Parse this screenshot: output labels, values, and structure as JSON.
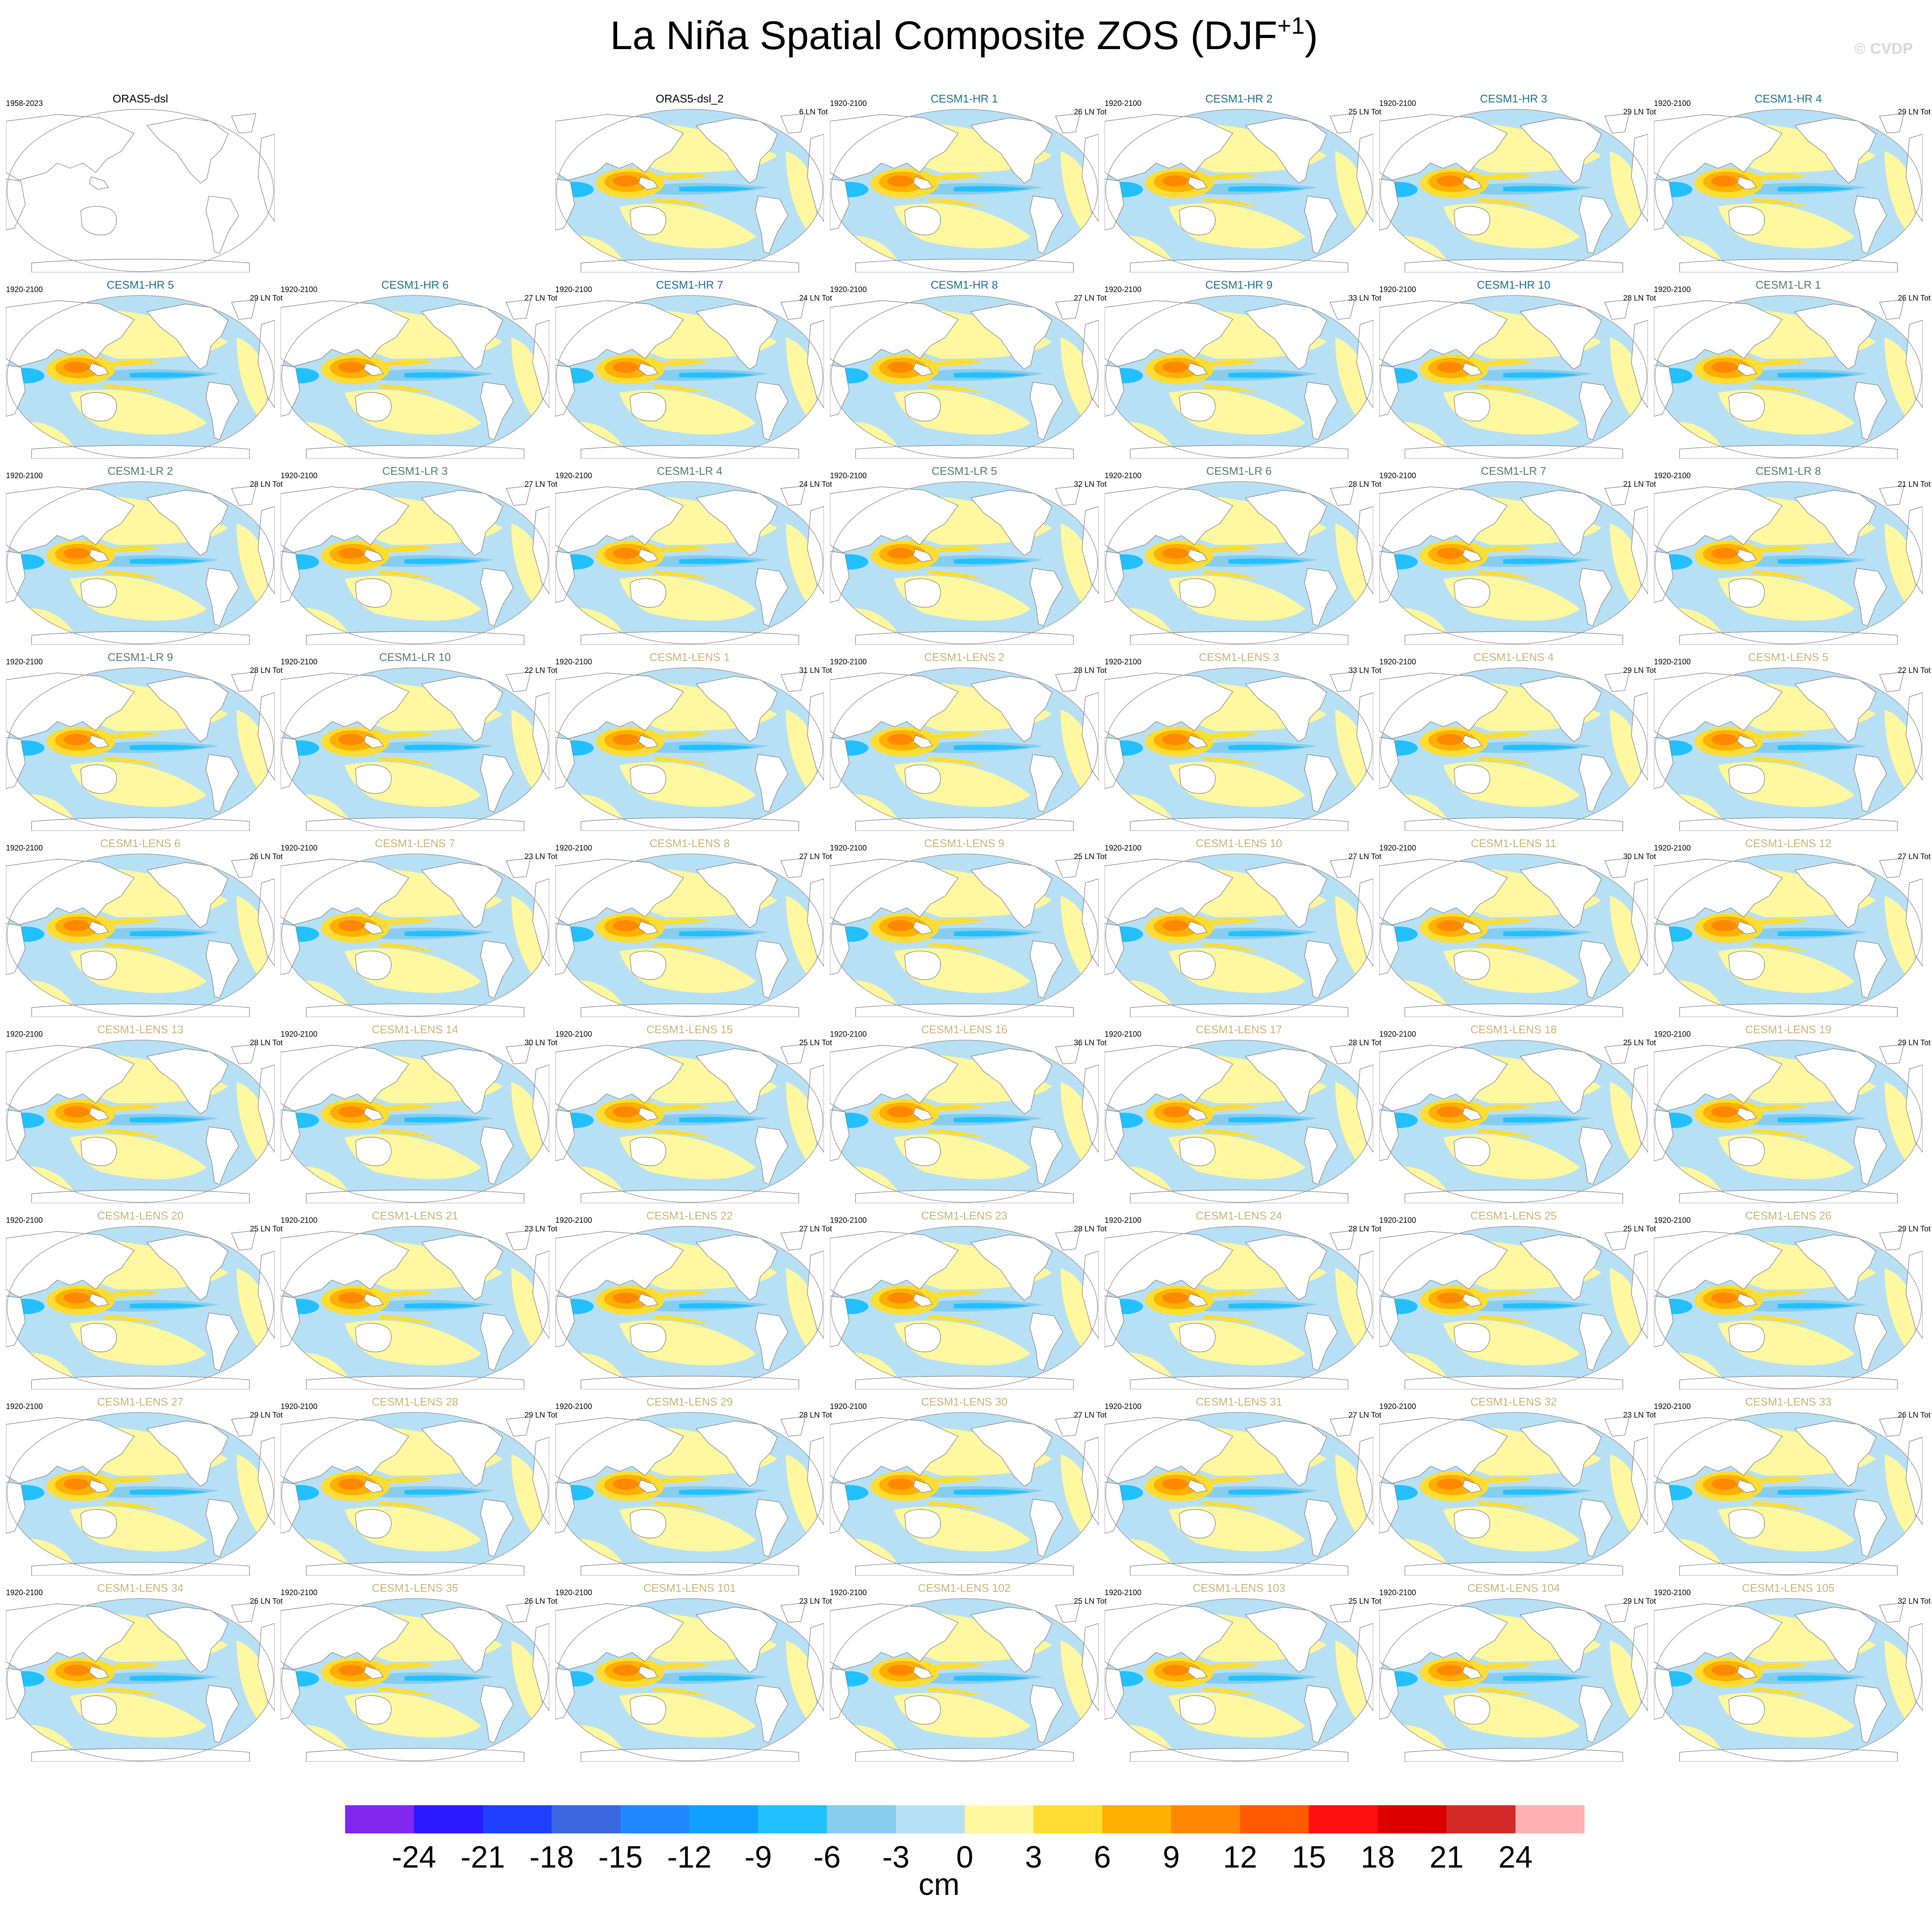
{
  "title_main": "La Niña Spatial Composite ZOS (DJF",
  "title_sup": "+1",
  "title_end": ")",
  "credit": "© CVDP",
  "groups": [
    {
      "color": "#000000",
      "panels": [
        {
          "title": "ORAS5-dsl",
          "period": "1958-2023"
        },
        {
          "title": "ORAS5-dsl_2",
          "count": "6 LN Tot"
        }
      ]
    },
    {
      "color": "#1f6f8b",
      "panels": [
        {
          "title": "CESM1-HR 1",
          "period": "1920-2100",
          "count": "26 LN Tot"
        },
        {
          "title": "CESM1-HR 2",
          "period": "1920-2100",
          "count": "25 LN Tot"
        },
        {
          "title": "CESM1-HR 3",
          "period": "1920-2100",
          "count": "29 LN Tot"
        },
        {
          "title": "CESM1-HR 4",
          "period": "1920-2100",
          "count": "29 LN Tot"
        },
        {
          "title": "CESM1-HR 5",
          "period": "1920-2100",
          "count": "29 LN Tot"
        },
        {
          "title": "CESM1-HR 6",
          "period": "1920-2100",
          "count": "27 LN Tot"
        },
        {
          "title": "CESM1-HR 7",
          "period": "1920-2100",
          "count": "24 LN Tot"
        },
        {
          "title": "CESM1-HR 8",
          "period": "1920-2100",
          "count": "27 LN Tot"
        },
        {
          "title": "CESM1-HR 9",
          "period": "1920-2100",
          "count": "33 LN Tot"
        },
        {
          "title": "CESM1-HR 10",
          "period": "1920-2100",
          "count": "28 LN Tot"
        }
      ]
    },
    {
      "color": "#567a6e",
      "panels": [
        {
          "title": "CESM1-LR 1",
          "period": "1920-2100",
          "count": "26 LN Tot"
        },
        {
          "title": "CESM1-LR 2",
          "period": "1920-2100",
          "count": "28 LN Tot"
        },
        {
          "title": "CESM1-LR 3",
          "period": "1920-2100",
          "count": "27 LN Tot"
        },
        {
          "title": "CESM1-LR 4",
          "period": "1920-2100",
          "count": "24 LN Tot"
        },
        {
          "title": "CESM1-LR 5",
          "period": "1920-2100",
          "count": "32 LN Tot"
        },
        {
          "title": "CESM1-LR 6",
          "period": "1920-2100",
          "count": "28 LN Tot"
        },
        {
          "title": "CESM1-LR 7",
          "period": "1920-2100",
          "count": "21 LN Tot"
        },
        {
          "title": "CESM1-LR 8",
          "period": "1920-2100",
          "count": "21 LN Tot"
        },
        {
          "title": "CESM1-LR 9",
          "period": "1920-2100",
          "count": "28 LN Tot"
        },
        {
          "title": "CESM1-LR 10",
          "period": "1920-2100",
          "count": "22 LN Tot"
        }
      ]
    },
    {
      "color": "#c9b476",
      "panels": [
        {
          "title": "CESM1-LENS 1",
          "period": "1920-2100",
          "count": "31 LN Tot"
        },
        {
          "title": "CESM1-LENS 2",
          "period": "1920-2100",
          "count": "28 LN Tot"
        },
        {
          "title": "CESM1-LENS 3",
          "period": "1920-2100",
          "count": "33 LN Tot"
        },
        {
          "title": "CESM1-LENS 4",
          "period": "1920-2100",
          "count": "29 LN Tot"
        },
        {
          "title": "CESM1-LENS 5",
          "period": "1920-2100",
          "count": "22 LN Tot"
        },
        {
          "title": "CESM1-LENS 6",
          "period": "1920-2100",
          "count": "26 LN Tot"
        },
        {
          "title": "CESM1-LENS 7",
          "period": "1920-2100",
          "count": "23 LN Tot"
        },
        {
          "title": "CESM1-LENS 8",
          "period": "1920-2100",
          "count": "27 LN Tot"
        },
        {
          "title": "CESM1-LENS 9",
          "period": "1920-2100",
          "count": "25 LN Tot"
        },
        {
          "title": "CESM1-LENS 10",
          "period": "1920-2100",
          "count": "27 LN Tot"
        },
        {
          "title": "CESM1-LENS 11",
          "period": "1920-2100",
          "count": "30 LN Tot"
        },
        {
          "title": "CESM1-LENS 12",
          "period": "1920-2100",
          "count": "27 LN Tot"
        },
        {
          "title": "CESM1-LENS 13",
          "period": "1920-2100",
          "count": "28 LN Tot"
        },
        {
          "title": "CESM1-LENS 14",
          "period": "1920-2100",
          "count": "30 LN Tot"
        },
        {
          "title": "CESM1-LENS 15",
          "period": "1920-2100",
          "count": "25 LN Tot"
        },
        {
          "title": "CESM1-LENS 16",
          "period": "1920-2100",
          "count": "36 LN Tot"
        },
        {
          "title": "CESM1-LENS 17",
          "period": "1920-2100",
          "count": "28 LN Tot"
        },
        {
          "title": "CESM1-LENS 18",
          "period": "1920-2100",
          "count": "25 LN Tot"
        },
        {
          "title": "CESM1-LENS 19",
          "period": "1920-2100",
          "count": "29 LN Tot"
        },
        {
          "title": "CESM1-LENS 20",
          "period": "1920-2100",
          "count": "25 LN Tot"
        },
        {
          "title": "CESM1-LENS 21",
          "period": "1920-2100",
          "count": "23 LN Tot"
        },
        {
          "title": "CESM1-LENS 22",
          "period": "1920-2100",
          "count": "27 LN Tot"
        },
        {
          "title": "CESM1-LENS 23",
          "period": "1920-2100",
          "count": "28 LN Tot"
        },
        {
          "title": "CESM1-LENS 24",
          "period": "1920-2100",
          "count": "28 LN Tot"
        },
        {
          "title": "CESM1-LENS 25",
          "period": "1920-2100",
          "count": "25 LN Tot"
        },
        {
          "title": "CESM1-LENS 26",
          "period": "1920-2100",
          "count": "29 LN Tot"
        },
        {
          "title": "CESM1-LENS 27",
          "period": "1920-2100",
          "count": "29 LN Tot"
        },
        {
          "title": "CESM1-LENS 28",
          "period": "1920-2100",
          "count": "29 LN Tot"
        },
        {
          "title": "CESM1-LENS 29",
          "period": "1920-2100",
          "count": "28 LN Tot"
        },
        {
          "title": "CESM1-LENS 30",
          "period": "1920-2100",
          "count": "27 LN Tot"
        },
        {
          "title": "CESM1-LENS 31",
          "period": "1920-2100",
          "count": "27 LN Tot"
        },
        {
          "title": "CESM1-LENS 32",
          "period": "1920-2100",
          "count": "23 LN Tot"
        },
        {
          "title": "CESM1-LENS 33",
          "period": "1920-2100",
          "count": "26 LN Tot"
        },
        {
          "title": "CESM1-LENS 34",
          "period": "1920-2100",
          "count": "26 LN Tot"
        },
        {
          "title": "CESM1-LENS 35",
          "period": "1920-2100",
          "count": "26 LN Tot"
        },
        {
          "title": "CESM1-LENS 101",
          "period": "1920-2100",
          "count": "23 LN Tot"
        },
        {
          "title": "CESM1-LENS 102",
          "period": "1920-2100",
          "count": "25 LN Tot"
        },
        {
          "title": "CESM1-LENS 103",
          "period": "1920-2100",
          "count": "25 LN Tot"
        },
        {
          "title": "CESM1-LENS 104",
          "period": "1920-2100",
          "count": "29 LN Tot"
        },
        {
          "title": "CESM1-LENS 105",
          "period": "1920-2100",
          "count": "32 LN Tot"
        }
      ]
    }
  ],
  "colorbar": {
    "colors": [
      "#8227ee",
      "#2a1aff",
      "#2040ff",
      "#3a66e0",
      "#2288ff",
      "#11a0ff",
      "#22c0ff",
      "#88ccee",
      "#b8e0f4",
      "#fff8a0",
      "#ffdd33",
      "#ffb000",
      "#ff8800",
      "#ff5a00",
      "#ff1010",
      "#dd0000",
      "#d42a2a",
      "#ffb0b0"
    ],
    "ticks": [
      -24,
      -21,
      -18,
      -15,
      -12,
      -9,
      -6,
      -3,
      0,
      3,
      6,
      9,
      12,
      15,
      18,
      21,
      24
    ],
    "label": "cm"
  }
}
